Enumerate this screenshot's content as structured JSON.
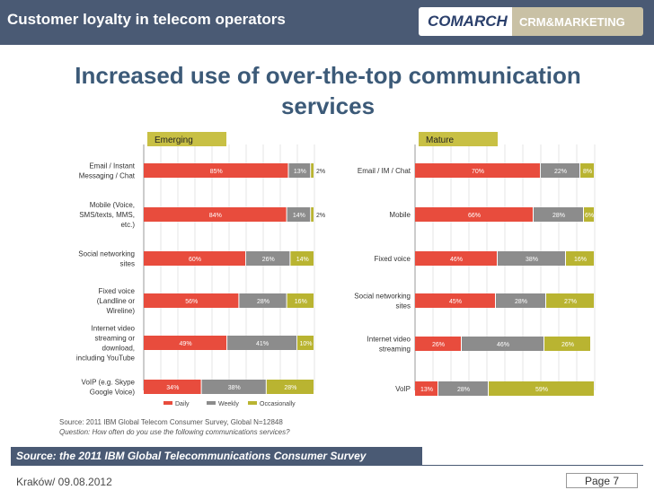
{
  "header": {
    "title": "Customer loyalty in telecom operators",
    "logo_primary": "COMARCH",
    "logo_secondary": "CRM&MARKETING"
  },
  "main_title": "Increased use of over-the-top communication services",
  "colors": {
    "daily": "#e84c3d",
    "weekly": "#8c8c8c",
    "occasionally": "#b9b431",
    "header_bar": "#4a5a74",
    "title": "#3c5a78"
  },
  "chart_data": [
    {
      "type": "bar",
      "orientation": "horizontal",
      "stacked": true,
      "title": "Emerging",
      "categories": [
        "Email / Instant Messaging / Chat",
        "Mobile (Voice, SMS/texts, MMS, etc.)",
        "Social networking sites",
        "Fixed voice (Landline or Wireline)",
        "Internet video streaming or download, including YouTube",
        "VoIP (e.g. Skype Google Voice)"
      ],
      "category_lines": [
        [
          "Email / Instant",
          "Messaging / Chat"
        ],
        [
          "Mobile (Voice,",
          "SMS/texts, MMS,",
          "etc.)"
        ],
        [
          "Social networking",
          "sites"
        ],
        [
          "Fixed voice",
          "(Landline or",
          "Wireline)"
        ],
        [
          "Internet video",
          "streaming or",
          "download,",
          "including YouTube"
        ],
        [
          "VoIP (e.g. Skype",
          "Google Voice)"
        ]
      ],
      "series": [
        {
          "name": "Daily",
          "values": [
            85,
            84,
            60,
            56,
            49,
            34
          ]
        },
        {
          "name": "Weekly",
          "values": [
            13,
            14,
            26,
            28,
            41,
            38
          ]
        },
        {
          "name": "Occasionally",
          "values": [
            2,
            2,
            14,
            16,
            10,
            28
          ]
        }
      ],
      "legend": [
        "Daily",
        "Weekly",
        "Occasionally"
      ],
      "legend_position": "bottom",
      "xlim": [
        0,
        100
      ],
      "unit": "%"
    },
    {
      "type": "bar",
      "orientation": "horizontal",
      "stacked": true,
      "title": "Mature",
      "categories": [
        "Email / IM / Chat",
        "Mobile",
        "Fixed voice",
        "Social networking sites",
        "Internet video streaming",
        "VoIP"
      ],
      "category_lines": [
        [
          "Email / IM / Chat"
        ],
        [
          "Mobile"
        ],
        [
          "Fixed voice"
        ],
        [
          "Social networking",
          "sites"
        ],
        [
          "Internet video",
          "streaming"
        ],
        [
          "VoIP"
        ]
      ],
      "series": [
        {
          "name": "Daily",
          "values": [
            70,
            66,
            46,
            45,
            26,
            13
          ]
        },
        {
          "name": "Weekly",
          "values": [
            22,
            28,
            38,
            28,
            46,
            28
          ]
        },
        {
          "name": "Occasionally",
          "values": [
            8,
            6,
            16,
            27,
            26,
            59
          ]
        }
      ],
      "xlim": [
        0,
        100
      ],
      "unit": "%"
    }
  ],
  "chart_source_line1": "Source: 2011 IBM Global Telecom Consumer Survey, Global N=12848",
  "chart_source_line2": "Question: How often do you use the following communications services?",
  "source_caption": "Source: the 2011 IBM Global Telecommunications Consumer Survey",
  "footer": {
    "location_date": "Kraków/ 09.08.2012",
    "page_label": "Page 7"
  }
}
